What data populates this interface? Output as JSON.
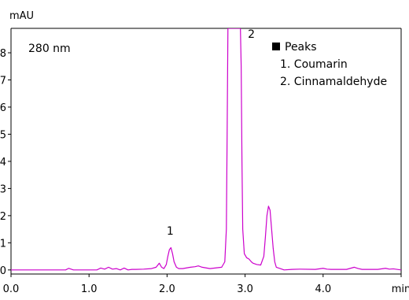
{
  "chart_data": {
    "type": "line",
    "ylabel": "mAU",
    "xlabel": "min",
    "wavelength_label": "280 nm",
    "xlim": [
      0.0,
      5.0
    ],
    "ylim": [
      -0.15,
      8.9
    ],
    "x_ticks": [
      {
        "value": 0.0,
        "label": "0.0"
      },
      {
        "value": 1.0,
        "label": "1.0"
      },
      {
        "value": 2.0,
        "label": "2.0"
      },
      {
        "value": 3.0,
        "label": "3.0"
      },
      {
        "value": 4.0,
        "label": "4.0"
      },
      {
        "value": 5.0,
        "label": "min"
      }
    ],
    "y_ticks": [
      {
        "value": 0,
        "label": "0"
      },
      {
        "value": 1,
        "label": "1"
      },
      {
        "value": 2,
        "label": "2"
      },
      {
        "value": 3,
        "label": "3"
      },
      {
        "value": 4,
        "label": "4"
      },
      {
        "value": 5,
        "label": "5"
      },
      {
        "value": 6,
        "label": "6"
      },
      {
        "value": 7,
        "label": "7"
      },
      {
        "value": 8,
        "label": "8"
      }
    ],
    "legend": {
      "title": "Peaks",
      "entries": [
        "1. Coumarin",
        "2. Cinnamaldehyde"
      ]
    },
    "peak_labels": [
      {
        "text": "1",
        "x": 2.04,
        "y": 1.3
      },
      {
        "text": "2",
        "x": 3.08,
        "y": 8.55
      }
    ],
    "series": [
      {
        "color": "#cc00cc",
        "x": [
          0.0,
          0.7,
          0.74,
          0.8,
          1.1,
          1.15,
          1.2,
          1.25,
          1.3,
          1.35,
          1.4,
          1.45,
          1.5,
          1.55,
          1.6,
          1.7,
          1.8,
          1.86,
          1.9,
          1.93,
          1.96,
          1.99,
          2.01,
          2.03,
          2.05,
          2.07,
          2.09,
          2.12,
          2.15,
          2.2,
          2.3,
          2.36,
          2.4,
          2.45,
          2.55,
          2.7,
          2.74,
          2.76,
          2.77,
          2.78,
          2.79,
          2.8,
          2.85,
          2.9,
          2.94,
          2.95,
          2.96,
          2.97,
          2.99,
          3.02,
          3.05,
          3.08,
          3.1,
          3.15,
          3.2,
          3.24,
          3.26,
          3.28,
          3.3,
          3.32,
          3.34,
          3.36,
          3.38,
          3.4,
          3.45,
          3.5,
          3.6,
          3.7,
          3.9,
          4.0,
          4.05,
          4.1,
          4.3,
          4.4,
          4.45,
          4.5,
          4.7,
          4.8,
          4.85,
          4.9,
          5.0
        ],
        "y": [
          0.0,
          0.0,
          0.06,
          0.0,
          0.0,
          0.07,
          0.03,
          0.1,
          0.03,
          0.05,
          0.0,
          0.07,
          0.0,
          0.02,
          0.02,
          0.03,
          0.05,
          0.1,
          0.25,
          0.1,
          0.05,
          0.2,
          0.5,
          0.75,
          0.82,
          0.6,
          0.3,
          0.1,
          0.05,
          0.05,
          0.1,
          0.12,
          0.15,
          0.1,
          0.05,
          0.1,
          0.3,
          1.5,
          5.0,
          8.9,
          8.9,
          8.9,
          8.9,
          8.9,
          8.9,
          7.5,
          4.0,
          1.5,
          0.6,
          0.45,
          0.4,
          0.3,
          0.25,
          0.2,
          0.18,
          0.5,
          1.2,
          2.0,
          2.35,
          2.2,
          1.5,
          0.8,
          0.3,
          0.1,
          0.05,
          0.0,
          0.02,
          0.03,
          0.02,
          0.06,
          0.03,
          0.02,
          0.02,
          0.1,
          0.05,
          0.02,
          0.02,
          0.06,
          0.03,
          0.04,
          0.0
        ]
      }
    ]
  }
}
